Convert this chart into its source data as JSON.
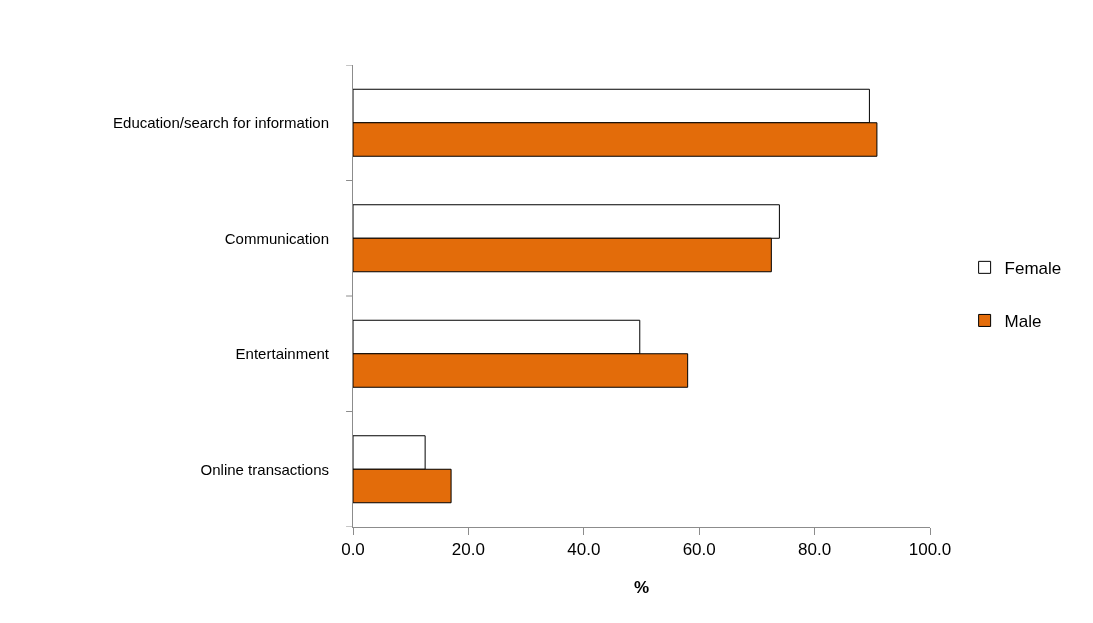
{
  "chart_data": {
    "type": "bar",
    "orientation": "horizontal",
    "categories": [
      "Education/search for information",
      "Communication",
      "Entertainment",
      "Online transactions"
    ],
    "series": [
      {
        "name": "Female",
        "color": "#ffffff",
        "values": [
          89.5,
          73.9,
          49.7,
          12.5
        ]
      },
      {
        "name": "Male",
        "color": "#e36c0a",
        "values": [
          90.8,
          72.5,
          58.0,
          17.0
        ]
      }
    ],
    "xlabel": "%",
    "xlim": [
      0,
      100
    ],
    "xticks": [
      {
        "value": 0,
        "label": "0.0"
      },
      {
        "value": 20,
        "label": "20.0"
      },
      {
        "value": 40,
        "label": "40.0"
      },
      {
        "value": 60,
        "label": "60.0"
      },
      {
        "value": 80,
        "label": "80.0"
      },
      {
        "value": 100,
        "label": "100.0"
      }
    ],
    "grid": false,
    "legend": "right"
  }
}
